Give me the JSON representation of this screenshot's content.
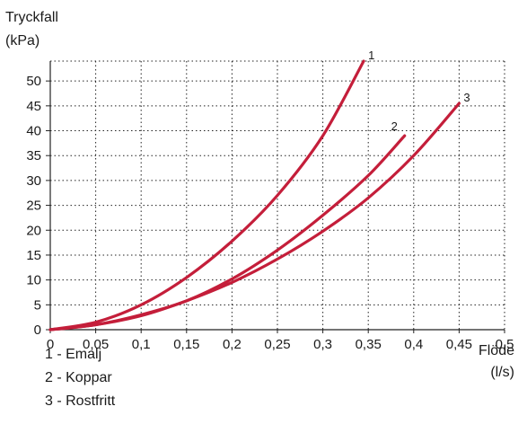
{
  "chart_data": {
    "type": "line",
    "ylabel_line1": "Tryckfall",
    "ylabel_line2": "(kPa)",
    "xlabel_line1": "Flöde",
    "xlabel_line2": "(l/s)",
    "xlim": [
      0,
      0.5
    ],
    "ylim": [
      0,
      54
    ],
    "xticks": [
      "0",
      "0,05",
      "0,1",
      "0,15",
      "0,2",
      "0,25",
      "0,3",
      "0,35",
      "0,4",
      "0,45",
      "0,5"
    ],
    "xtick_values": [
      0,
      0.05,
      0.1,
      0.15,
      0.2,
      0.25,
      0.3,
      0.35,
      0.4,
      0.45,
      0.5
    ],
    "yticks": [
      "0",
      "5",
      "10",
      "15",
      "20",
      "25",
      "30",
      "35",
      "40",
      "45",
      "50"
    ],
    "ytick_values": [
      0,
      5,
      10,
      15,
      20,
      25,
      30,
      35,
      40,
      45,
      50
    ],
    "grid": true,
    "line_color": "#c41e3a",
    "series": [
      {
        "name": "1",
        "x": [
          0,
          0.05,
          0.1,
          0.15,
          0.2,
          0.25,
          0.3,
          0.345
        ],
        "y": [
          0,
          1.5,
          5,
          10.5,
          17.8,
          27,
          39,
          54
        ]
      },
      {
        "name": "2",
        "x": [
          0,
          0.05,
          0.1,
          0.15,
          0.2,
          0.25,
          0.3,
          0.35,
          0.39
        ],
        "y": [
          0,
          1,
          3,
          5.8,
          10.2,
          16,
          23,
          31,
          39
        ]
      },
      {
        "name": "3",
        "x": [
          0,
          0.05,
          0.1,
          0.15,
          0.2,
          0.25,
          0.3,
          0.35,
          0.4,
          0.45
        ],
        "y": [
          0,
          1,
          2.8,
          5.8,
          9.5,
          14.2,
          19.8,
          26.5,
          35,
          45.5
        ]
      }
    ],
    "legend_entries": [
      "1 - Emalj",
      "2 - Koppar",
      "3 - Rostfritt"
    ]
  }
}
